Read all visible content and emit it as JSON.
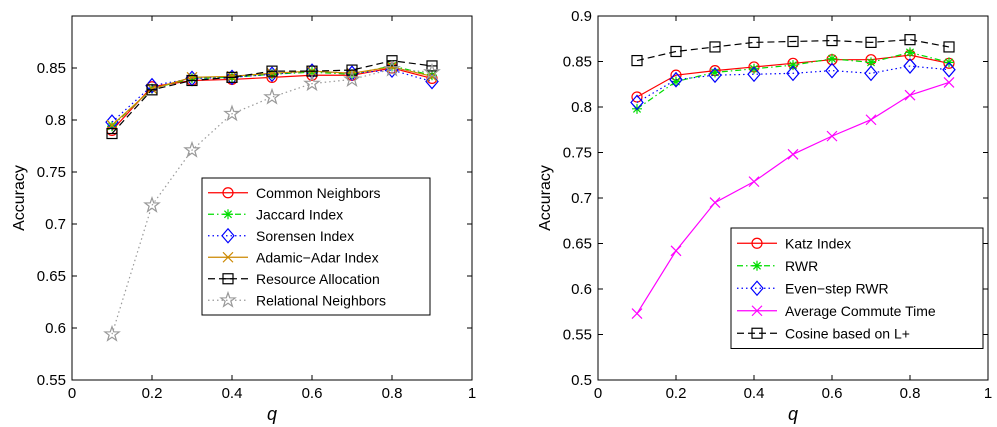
{
  "chart_data": [
    {
      "type": "line",
      "xlabel": "q",
      "ylabel": "Accuracy",
      "xlim": [
        0,
        1
      ],
      "ylim": [
        0.55,
        0.9
      ],
      "xticks": [
        "0",
        "0.2",
        "0.4",
        "0.6",
        "0.8",
        "1"
      ],
      "yticks": [
        "0.55",
        "0.6",
        "0.65",
        "0.7",
        "0.75",
        "0.8",
        "0.85"
      ],
      "legend_position": "lower-right",
      "grid": false,
      "x": [
        0.1,
        0.2,
        0.3,
        0.4,
        0.5,
        0.6,
        0.7,
        0.8,
        0.9
      ],
      "series": [
        {
          "name": "Common Neighbors",
          "color": "#ff0000",
          "dash": "solid",
          "marker": "circle",
          "values": [
            0.79,
            0.832,
            0.838,
            0.839,
            0.841,
            0.843,
            0.843,
            0.85,
            0.84
          ]
        },
        {
          "name": "Jaccard Index",
          "color": "#00dd00",
          "dash": "dashdot",
          "marker": "asterisk",
          "values": [
            0.794,
            0.83,
            0.84,
            0.841,
            0.844,
            0.846,
            0.844,
            0.852,
            0.843
          ]
        },
        {
          "name": "Sorensen Index",
          "color": "#0000ff",
          "dash": "dotted",
          "marker": "diamond",
          "values": [
            0.798,
            0.833,
            0.84,
            0.841,
            0.844,
            0.847,
            0.845,
            0.848,
            0.837
          ]
        },
        {
          "name": "Adamic−Adar Index",
          "color": "#cc8800",
          "dash": "solid",
          "marker": "x",
          "values": [
            0.795,
            0.83,
            0.841,
            0.842,
            0.845,
            0.847,
            0.845,
            0.851,
            0.842
          ]
        },
        {
          "name": "Resource Allocation",
          "color": "#000000",
          "dash": "dashed",
          "marker": "squarex",
          "values": [
            0.787,
            0.829,
            0.838,
            0.841,
            0.847,
            0.847,
            0.848,
            0.857,
            0.852
          ]
        },
        {
          "name": "Relational Neighbors",
          "color": "#999999",
          "dash": "dotted",
          "marker": "star",
          "values": [
            0.594,
            0.718,
            0.771,
            0.806,
            0.822,
            0.835,
            0.839,
            0.849,
            0.846
          ]
        }
      ]
    },
    {
      "type": "line",
      "xlabel": "q",
      "ylabel": "Accuracy",
      "xlim": [
        0,
        1
      ],
      "ylim": [
        0.5,
        0.9
      ],
      "xticks": [
        "0",
        "0.2",
        "0.4",
        "0.6",
        "0.8",
        "1"
      ],
      "yticks": [
        "0.5",
        "0.55",
        "0.6",
        "0.65",
        "0.7",
        "0.75",
        "0.8",
        "0.85",
        "0.9"
      ],
      "legend_position": "lower-right",
      "grid": false,
      "x": [
        0.1,
        0.2,
        0.3,
        0.4,
        0.5,
        0.6,
        0.7,
        0.8,
        0.9
      ],
      "series": [
        {
          "name": "Katz Index",
          "color": "#ff0000",
          "dash": "solid",
          "marker": "circle",
          "values": [
            0.811,
            0.835,
            0.84,
            0.844,
            0.848,
            0.852,
            0.852,
            0.857,
            0.848
          ]
        },
        {
          "name": "RWR",
          "color": "#00dd00",
          "dash": "dashdot",
          "marker": "asterisk",
          "values": [
            0.798,
            0.828,
            0.838,
            0.842,
            0.846,
            0.853,
            0.849,
            0.86,
            0.849
          ]
        },
        {
          "name": "Even−step RWR",
          "color": "#0000ff",
          "dash": "dotted",
          "marker": "diamond",
          "values": [
            0.805,
            0.83,
            0.835,
            0.836,
            0.837,
            0.84,
            0.837,
            0.845,
            0.841
          ]
        },
        {
          "name": "Average Commute Time",
          "color": "#ff00ff",
          "dash": "solid",
          "marker": "x",
          "values": [
            0.573,
            0.642,
            0.695,
            0.718,
            0.748,
            0.768,
            0.786,
            0.813,
            0.827
          ]
        },
        {
          "name": "Cosine based on L+",
          "color": "#000000",
          "dash": "dashed",
          "marker": "square",
          "values": [
            0.851,
            0.861,
            0.866,
            0.871,
            0.872,
            0.873,
            0.871,
            0.874,
            0.866
          ]
        }
      ]
    }
  ]
}
